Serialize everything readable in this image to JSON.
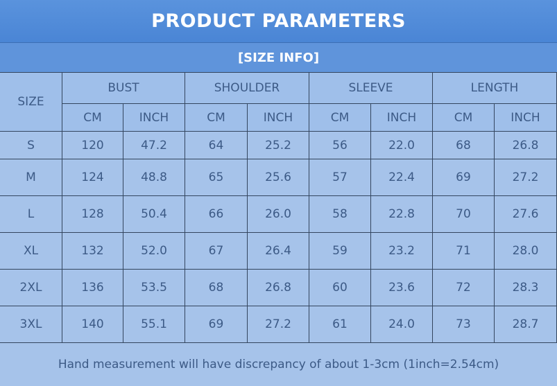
{
  "header": {
    "title": "PRODUCT PARAMETERS",
    "subtitle": "[SIZE INFO]"
  },
  "table": {
    "size_header": "SIZE",
    "groups": [
      {
        "name": "BUST",
        "units": [
          "CM",
          "INCH"
        ]
      },
      {
        "name": "SHOULDER",
        "units": [
          "CM",
          "INCH"
        ]
      },
      {
        "name": "SLEEVE",
        "units": [
          "CM",
          "INCH"
        ]
      },
      {
        "name": "LENGTH",
        "units": [
          "CM",
          "INCH"
        ]
      }
    ],
    "rows": [
      [
        "S",
        "120",
        "47.2",
        "64",
        "25.2",
        "56",
        "22.0",
        "68",
        "26.8"
      ],
      [
        "M",
        "124",
        "48.8",
        "65",
        "25.6",
        "57",
        "22.4",
        "69",
        "27.2"
      ],
      [
        "L",
        "128",
        "50.4",
        "66",
        "26.0",
        "58",
        "22.8",
        "70",
        "27.6"
      ],
      [
        "XL",
        "132",
        "52.0",
        "67",
        "26.4",
        "59",
        "23.2",
        "71",
        "28.0"
      ],
      [
        "2XL",
        "136",
        "53.5",
        "68",
        "26.8",
        "60",
        "23.6",
        "72",
        "28.3"
      ],
      [
        "3XL",
        "140",
        "55.1",
        "69",
        "27.2",
        "61",
        "24.0",
        "73",
        "28.7"
      ]
    ]
  },
  "footer": {
    "note": "Hand measurement will have discrepancy of about 1-3cm (1inch=2.54cm)"
  }
}
